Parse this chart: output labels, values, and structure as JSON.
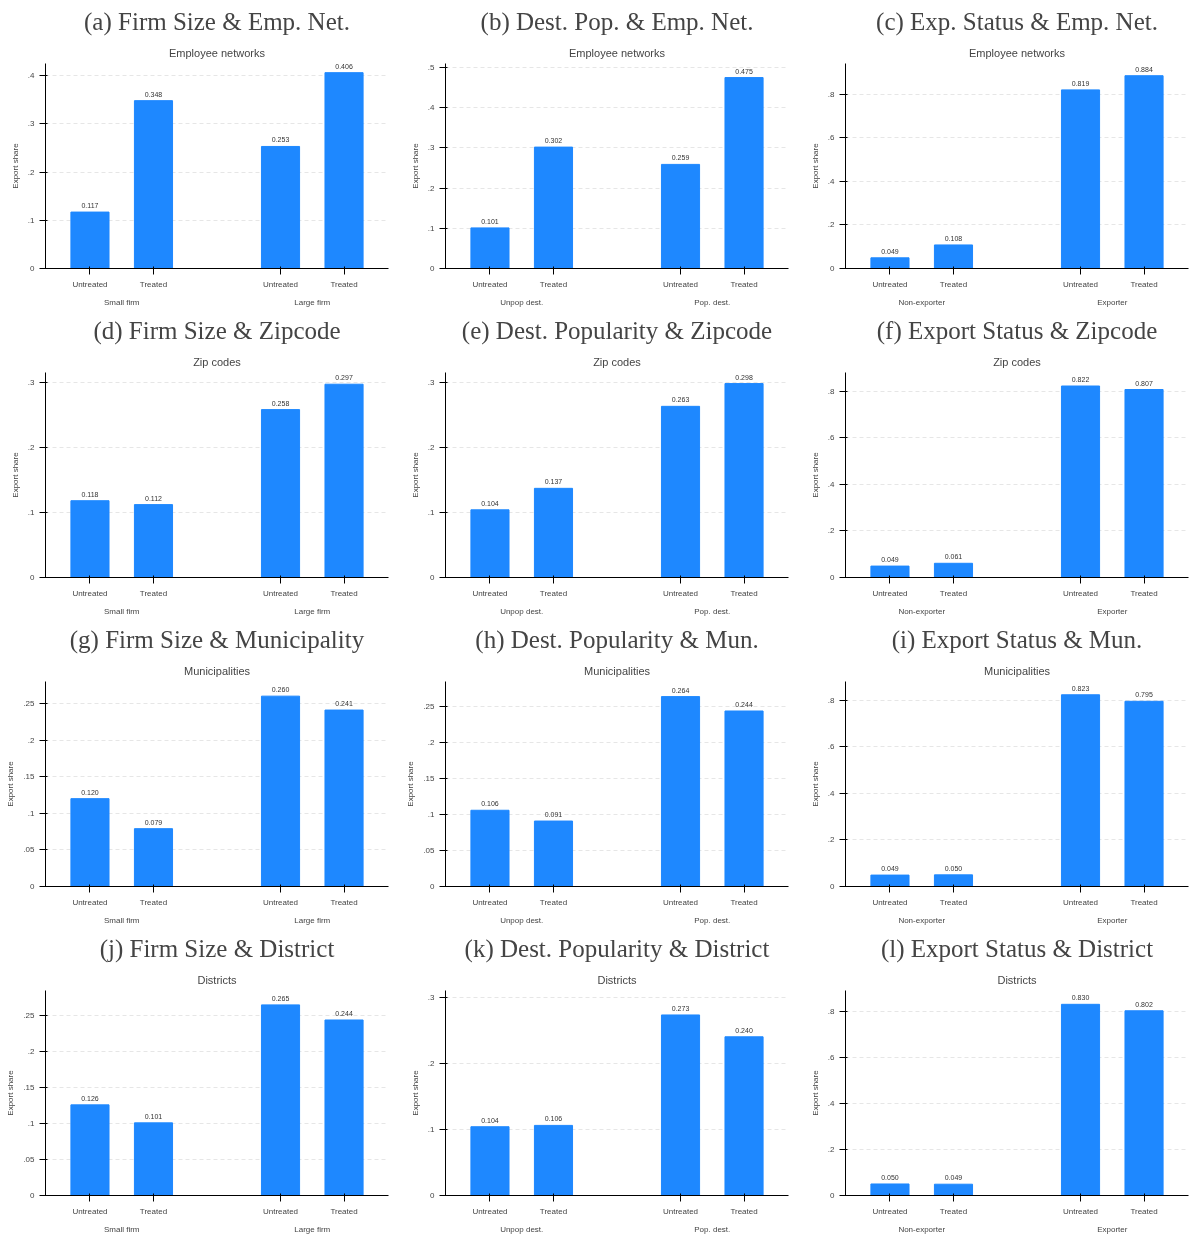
{
  "chart_data": [
    {
      "type": "bar",
      "title": "(a) Firm Size & Emp. Net.",
      "subtitle": "Employee networks",
      "ylabel": "Export share",
      "categories": [
        "Untreated",
        "Treated",
        "Untreated",
        "Treated"
      ],
      "values": [
        0.117,
        0.348,
        0.253,
        0.406
      ],
      "value_labels": [
        "0.117",
        "0.348",
        "0.253",
        "0.406"
      ],
      "color": "#1e88ff",
      "ylim": [
        0,
        0.425
      ],
      "yticks": [
        0,
        {
          "value": 0.1,
          "label": ".1"
        },
        {
          "value": 0.2,
          "label": ".2"
        },
        {
          "value": 0.3,
          "label": ".3"
        },
        {
          "value": 0.4,
          "label": ".4"
        }
      ],
      "grid": "y",
      "annotations": [
        "Small firm",
        "Large firm"
      ]
    },
    {
      "type": "bar",
      "title": "(b) Dest. Pop. & Emp. Net.",
      "subtitle": "Employee networks",
      "ylabel": "Export share",
      "categories": [
        "Untreated",
        "Treated",
        "Untreated",
        "Treated"
      ],
      "values": [
        0.101,
        0.302,
        0.259,
        0.475
      ],
      "value_labels": [
        "0.101",
        "0.302",
        "0.259",
        "0.475"
      ],
      "color": "#1e88ff",
      "ylim": [
        0,
        0.51
      ],
      "yticks": [
        0,
        {
          "value": 0.1,
          "label": ".1"
        },
        {
          "value": 0.2,
          "label": ".2"
        },
        {
          "value": 0.3,
          "label": ".3"
        },
        {
          "value": 0.4,
          "label": ".4"
        },
        {
          "value": 0.5,
          "label": ".5"
        }
      ],
      "grid": "y",
      "annotations": [
        "Unpop dest.",
        "Pop. dest."
      ]
    },
    {
      "type": "bar",
      "title": "(c) Exp. Status & Emp. Net.",
      "subtitle": "Employee networks",
      "ylabel": "Export share",
      "categories": [
        "Untreated",
        "Treated",
        "Untreated",
        "Treated"
      ],
      "values": [
        0.049,
        0.108,
        0.819,
        0.884
      ],
      "value_labels": [
        "0.049",
        "0.108",
        "0.819",
        "0.884"
      ],
      "color": "#1e88ff",
      "ylim": [
        0,
        0.94
      ],
      "yticks": [
        0,
        {
          "value": 0.2,
          "label": ".2"
        },
        {
          "value": 0.4,
          "label": ".4"
        },
        {
          "value": 0.6,
          "label": ".6"
        },
        {
          "value": 0.8,
          "label": ".8"
        }
      ],
      "grid": "y",
      "annotations": [
        "Non-exporter",
        "Exporter"
      ]
    },
    {
      "type": "bar",
      "title": "(d) Firm Size & Zipcode",
      "subtitle": "Zip codes",
      "ylabel": "Export share",
      "categories": [
        "Untreated",
        "Treated",
        "Untreated",
        "Treated"
      ],
      "values": [
        0.118,
        0.112,
        0.258,
        0.297
      ],
      "value_labels": [
        "0.118",
        "0.112",
        "0.258",
        "0.297"
      ],
      "color": "#1e88ff",
      "ylim": [
        0,
        0.315
      ],
      "yticks": [
        0,
        {
          "value": 0.1,
          "label": ".1"
        },
        {
          "value": 0.2,
          "label": ".2"
        },
        {
          "value": 0.3,
          "label": ".3"
        }
      ],
      "grid": "y",
      "annotations": [
        "Small firm",
        "Large firm"
      ]
    },
    {
      "type": "bar",
      "title": "(e) Dest. Popularity & Zipcode",
      "subtitle": "Zip codes",
      "ylabel": "Export share",
      "categories": [
        "Untreated",
        "Treated",
        "Untreated",
        "Treated"
      ],
      "values": [
        0.104,
        0.137,
        0.263,
        0.298
      ],
      "value_labels": [
        "0.104",
        "0.137",
        "0.263",
        "0.298"
      ],
      "color": "#1e88ff",
      "ylim": [
        0,
        0.315
      ],
      "yticks": [
        0,
        {
          "value": 0.1,
          "label": ".1"
        },
        {
          "value": 0.2,
          "label": ".2"
        },
        {
          "value": 0.3,
          "label": ".3"
        }
      ],
      "grid": "y",
      "annotations": [
        "Unpop dest.",
        "Pop. dest."
      ]
    },
    {
      "type": "bar",
      "title": "(f) Export Status & Zipcode",
      "subtitle": "Zip codes",
      "ylabel": "Export share",
      "categories": [
        "Untreated",
        "Treated",
        "Untreated",
        "Treated"
      ],
      "values": [
        0.049,
        0.061,
        0.822,
        0.807
      ],
      "value_labels": [
        "0.049",
        "0.061",
        "0.822",
        "0.807"
      ],
      "color": "#1e88ff",
      "ylim": [
        0,
        0.88
      ],
      "yticks": [
        0,
        {
          "value": 0.2,
          "label": ".2"
        },
        {
          "value": 0.4,
          "label": ".4"
        },
        {
          "value": 0.6,
          "label": ".6"
        },
        {
          "value": 0.8,
          "label": ".8"
        }
      ],
      "grid": "y",
      "annotations": [
        "Non-exporter",
        "Exporter"
      ]
    },
    {
      "type": "bar",
      "title": "(g) Firm Size & Municipality",
      "subtitle": "Municipalities",
      "ylabel": "Export share",
      "categories": [
        "Untreated",
        "Treated",
        "Untreated",
        "Treated"
      ],
      "values": [
        0.12,
        0.079,
        0.26,
        0.241
      ],
      "value_labels": [
        "0.120",
        "0.079",
        "0.260",
        "0.241"
      ],
      "color": "#1e88ff",
      "ylim": [
        0,
        0.28
      ],
      "yticks": [
        0,
        {
          "value": 0.05,
          "label": ".05"
        },
        {
          "value": 0.1,
          "label": ".1"
        },
        {
          "value": 0.15,
          "label": ".15"
        },
        {
          "value": 0.2,
          "label": ".2"
        },
        {
          "value": 0.25,
          "label": ".25"
        }
      ],
      "grid": "y",
      "annotations": [
        "Small firm",
        "Large firm"
      ]
    },
    {
      "type": "bar",
      "title": "(h) Dest. Popularity & Mun.",
      "subtitle": "Municipalities",
      "ylabel": "Export share",
      "categories": [
        "Untreated",
        "Treated",
        "Untreated",
        "Treated"
      ],
      "values": [
        0.106,
        0.091,
        0.264,
        0.244
      ],
      "value_labels": [
        "0.106",
        "0.091",
        "0.264",
        "0.244"
      ],
      "color": "#1e88ff",
      "ylim": [
        0,
        0.285
      ],
      "yticks": [
        0,
        {
          "value": 0.05,
          "label": ".05"
        },
        {
          "value": 0.1,
          "label": ".1"
        },
        {
          "value": 0.15,
          "label": ".15"
        },
        {
          "value": 0.2,
          "label": ".2"
        },
        {
          "value": 0.25,
          "label": ".25"
        }
      ],
      "grid": "y",
      "annotations": [
        "Unpop dest.",
        "Pop. dest."
      ]
    },
    {
      "type": "bar",
      "title": "(i) Export Status & Mun.",
      "subtitle": "Municipalities",
      "ylabel": "Export share",
      "categories": [
        "Untreated",
        "Treated",
        "Untreated",
        "Treated"
      ],
      "values": [
        0.049,
        0.05,
        0.823,
        0.795
      ],
      "value_labels": [
        "0.049",
        "0.050",
        "0.823",
        "0.795"
      ],
      "color": "#1e88ff",
      "ylim": [
        0,
        0.88
      ],
      "yticks": [
        0,
        {
          "value": 0.2,
          "label": ".2"
        },
        {
          "value": 0.4,
          "label": ".4"
        },
        {
          "value": 0.6,
          "label": ".6"
        },
        {
          "value": 0.8,
          "label": ".8"
        }
      ],
      "grid": "y",
      "annotations": [
        "Non-exporter",
        "Exporter"
      ]
    },
    {
      "type": "bar",
      "title": "(j) Firm Size & District",
      "subtitle": "Districts",
      "ylabel": "Export share",
      "categories": [
        "Untreated",
        "Treated",
        "Untreated",
        "Treated"
      ],
      "values": [
        0.126,
        0.101,
        0.265,
        0.244
      ],
      "value_labels": [
        "0.126",
        "0.101",
        "0.265",
        "0.244"
      ],
      "color": "#1e88ff",
      "ylim": [
        0,
        0.285
      ],
      "yticks": [
        0,
        {
          "value": 0.05,
          "label": ".05"
        },
        {
          "value": 0.1,
          "label": ".1"
        },
        {
          "value": 0.15,
          "label": ".15"
        },
        {
          "value": 0.2,
          "label": ".2"
        },
        {
          "value": 0.25,
          "label": ".25"
        }
      ],
      "grid": "y",
      "annotations": [
        "Small firm",
        "Large firm"
      ]
    },
    {
      "type": "bar",
      "title": "(k) Dest. Popularity & District",
      "subtitle": "Districts",
      "ylabel": "Export share",
      "categories": [
        "Untreated",
        "Treated",
        "Untreated",
        "Treated"
      ],
      "values": [
        0.104,
        0.106,
        0.273,
        0.24
      ],
      "value_labels": [
        "0.104",
        "0.106",
        "0.273",
        "0.240"
      ],
      "color": "#1e88ff",
      "ylim": [
        0,
        0.31
      ],
      "yticks": [
        0,
        {
          "value": 0.1,
          "label": ".1"
        },
        {
          "value": 0.2,
          "label": ".2"
        },
        {
          "value": 0.3,
          "label": ".3"
        }
      ],
      "grid": "y",
      "annotations": [
        "Unpop dest.",
        "Pop. dest."
      ]
    },
    {
      "type": "bar",
      "title": "(l) Export Status & District",
      "subtitle": "Districts",
      "ylabel": "Export share",
      "categories": [
        "Untreated",
        "Treated",
        "Untreated",
        "Treated"
      ],
      "values": [
        0.05,
        0.049,
        0.83,
        0.802
      ],
      "value_labels": [
        "0.050",
        "0.049",
        "0.830",
        "0.802"
      ],
      "color": "#1e88ff",
      "ylim": [
        0,
        0.89
      ],
      "yticks": [
        0,
        {
          "value": 0.2,
          "label": ".2"
        },
        {
          "value": 0.4,
          "label": ".4"
        },
        {
          "value": 0.6,
          "label": ".6"
        },
        {
          "value": 0.8,
          "label": ".8"
        }
      ],
      "grid": "y",
      "annotations": [
        "Non-exporter",
        "Exporter"
      ]
    }
  ]
}
